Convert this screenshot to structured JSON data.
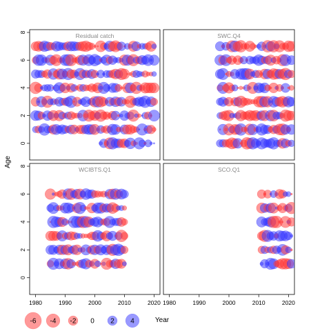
{
  "chart_data": {
    "type": "scatter",
    "subtype": "bubble-residuals-panels",
    "xlabel": "Year",
    "ylabel": "Age",
    "xlim": [
      1978,
      2022
    ],
    "ylim": [
      -1.2,
      8.2
    ],
    "x_ticks": [
      1980,
      1990,
      2000,
      2010,
      2020
    ],
    "y_ticks": [
      0,
      2,
      4,
      6,
      8
    ],
    "colors": {
      "positive": "#3333ff",
      "negative": "#ff3333",
      "panel_title": "#888888"
    },
    "grid": false,
    "legend_placement": "bottom-left",
    "legend": {
      "items": [
        {
          "value": -6,
          "label": "-6"
        },
        {
          "value": -4,
          "label": "-4"
        },
        {
          "value": -2,
          "label": "-2"
        },
        {
          "value": 0,
          "label": "0"
        },
        {
          "value": 2,
          "label": "2"
        },
        {
          "value": 4,
          "label": "4"
        }
      ]
    },
    "panels": [
      {
        "title": "Residual catch",
        "years": [
          1980,
          2020
        ],
        "ages": [
          1,
          2,
          3,
          4,
          5,
          6,
          7
        ],
        "extra": {
          "age": 0,
          "years": [
            2002,
            2020
          ]
        }
      },
      {
        "title": "SWC.Q4",
        "years": [
          1997,
          2021
        ],
        "ages": [
          0,
          1,
          2,
          3,
          4,
          5,
          6,
          7
        ]
      },
      {
        "title": "WCIBTS.Q1",
        "years": [
          1985,
          2010
        ],
        "ages": [
          1,
          2,
          3,
          4,
          5,
          6
        ]
      },
      {
        "title": "SCO.Q1",
        "years": [
          2011,
          2021
        ],
        "ages": [
          1,
          2,
          3,
          4,
          5,
          6
        ]
      }
    ]
  }
}
